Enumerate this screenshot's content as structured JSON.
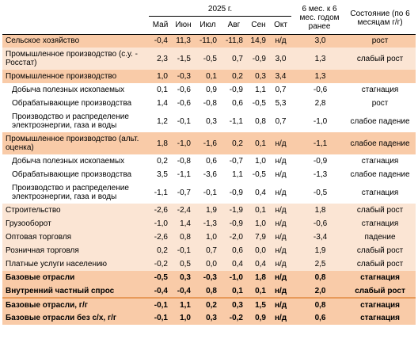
{
  "header": {
    "year": "2025 г.",
    "months": [
      "Май",
      "Июн",
      "Июл",
      "Авг",
      "Сен",
      "Окт"
    ],
    "six_months": "6 мес. к 6 мес. годом ранее",
    "state": "Состояние (по 6 месяцам г/г)"
  },
  "rows": [
    {
      "label": "Сельское хозяйство",
      "values": [
        "-0,4",
        "11,3",
        "-11,0",
        "-11,8",
        "14,9",
        "н/д"
      ],
      "six": "3,0",
      "status": "рост"
    },
    {
      "label": "Промышленное производство (с.у. - Росстат)",
      "values": [
        "2,3",
        "-1,5",
        "-0,5",
        "0,7",
        "-0,9",
        "3,0"
      ],
      "six": "1,3",
      "status": "слабый рост"
    },
    {
      "label": "Промышленное производство",
      "values": [
        "1,0",
        "-0,3",
        "0,1",
        "0,2",
        "0,3",
        "3,4"
      ],
      "six": "1,3",
      "status": ""
    },
    {
      "label": "Добыча полезных ископаемых",
      "values": [
        "0,1",
        "-0,6",
        "0,9",
        "-0,9",
        "1,1",
        "0,7"
      ],
      "six": "-0,6",
      "status": "стагнация"
    },
    {
      "label": "Обрабатывающие производства",
      "values": [
        "1,4",
        "-0,6",
        "-0,8",
        "0,6",
        "-0,5",
        "5,3"
      ],
      "six": "2,8",
      "status": "рост"
    },
    {
      "label": "Производство и распределение электроэнергии, газа и воды",
      "values": [
        "1,2",
        "-0,1",
        "0,3",
        "-1,1",
        "0,8",
        "0,7"
      ],
      "six": "-1,0",
      "status": "слабое падение"
    },
    {
      "label": "Промышленное производство (альт. оценка)",
      "values": [
        "1,8",
        "-1,0",
        "-1,6",
        "0,2",
        "0,1",
        "н/д"
      ],
      "six": "-1,1",
      "status": "слабое падение"
    },
    {
      "label": "Добыча полезных ископаемых",
      "values": [
        "0,2",
        "-0,8",
        "0,6",
        "-0,7",
        "1,0",
        "н/д"
      ],
      "six": "-0,9",
      "status": "стагнация"
    },
    {
      "label": "Обрабатывающие производства",
      "values": [
        "3,5",
        "-1,1",
        "-3,6",
        "1,1",
        "-0,5",
        "н/д"
      ],
      "six": "-1,3",
      "status": "слабое падение"
    },
    {
      "label": "Производство и распределение электроэнергии, газа и воды",
      "values": [
        "-1,1",
        "-0,7",
        "-0,1",
        "-0,9",
        "0,4",
        "н/д"
      ],
      "six": "-0,5",
      "status": "стагнация"
    },
    {
      "label": "Строительство",
      "values": [
        "-2,6",
        "-2,4",
        "1,9",
        "-1,9",
        "0,1",
        "н/д"
      ],
      "six": "1,8",
      "status": "слабый рост"
    },
    {
      "label": "Грузооборот",
      "values": [
        "-1,0",
        "1,4",
        "-1,3",
        "-0,9",
        "1,0",
        "н/д"
      ],
      "six": "-0,6",
      "status": "стагнация"
    },
    {
      "label": "Оптовая торговля",
      "values": [
        "-2,6",
        "0,8",
        "1,0",
        "-2,0",
        "7,9",
        "н/д"
      ],
      "six": "-3,4",
      "status": "падение"
    },
    {
      "label": "Розничная торговля",
      "values": [
        "0,2",
        "-0,1",
        "0,7",
        "0,6",
        "0,0",
        "н/д"
      ],
      "six": "1,9",
      "status": "слабый рост"
    },
    {
      "label": "Платные услуги населению",
      "values": [
        "-0,2",
        "0,5",
        "0,0",
        "0,4",
        "0,4",
        "н/д"
      ],
      "six": "2,5",
      "status": "слабый рост"
    },
    {
      "label": "Базовые отрасли",
      "values": [
        "-0,5",
        "0,3",
        "-0,3",
        "-1,0",
        "1,8",
        "н/д"
      ],
      "six": "0,8",
      "status": "стагнация"
    },
    {
      "label": "Внутренний частный спрос",
      "values": [
        "-0,4",
        "-0,4",
        "0,8",
        "0,1",
        "0,1",
        "н/д"
      ],
      "six": "2,0",
      "status": "слабый рост"
    },
    {
      "label": "Базовые отрасли, г/г",
      "values": [
        "-0,1",
        "1,1",
        "0,2",
        "0,3",
        "1,5",
        "н/д"
      ],
      "six": "0,8",
      "status": "стагнация"
    },
    {
      "label": "Базовые отрасли без с/х, г/г",
      "values": [
        "-0,1",
        "1,0",
        "0,3",
        "-0,2",
        "0,9",
        "н/д"
      ],
      "six": "0,6",
      "status": "стагнация"
    }
  ]
}
